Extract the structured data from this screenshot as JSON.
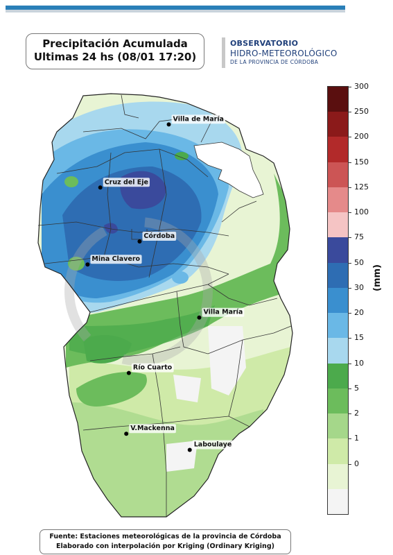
{
  "title": {
    "line1": "Precipitación Acumulada",
    "line2": "Ultimas 24 hs (08/01 17:20)"
  },
  "logo": {
    "line1": "OBSERVATORIO",
    "line2": "HIDRO-METEOROLÓGICO",
    "line3": "DE LA PROVINCIA DE CÓRDOBA"
  },
  "cities": [
    {
      "name": "Villa de María",
      "lon": -63.72,
      "lat": -29.9
    },
    {
      "name": "Cruz del Eje",
      "lon": -64.8,
      "lat": -30.72
    },
    {
      "name": "Córdoba",
      "lon": -64.18,
      "lat": -31.42
    },
    {
      "name": "Mina Clavero",
      "lon": -65.0,
      "lat": -31.72
    },
    {
      "name": "Villa María",
      "lon": -63.24,
      "lat": -32.41
    },
    {
      "name": "Río Cuarto",
      "lon": -64.35,
      "lat": -33.13
    },
    {
      "name": "V.Mackenna",
      "lon": -64.39,
      "lat": -33.92
    },
    {
      "name": "Laboulaye",
      "lon": -63.39,
      "lat": -34.13
    }
  ],
  "colorbar": {
    "unit": "(mm)",
    "levels": [
      "300",
      "250",
      "200",
      "150",
      "125",
      "100",
      "75",
      "50",
      "30",
      "20",
      "15",
      "10",
      "5",
      "2",
      "1",
      "0"
    ],
    "colors": [
      "#5a0f0f",
      "#8b1a1a",
      "#b22a2a",
      "#cc5555",
      "#e58a8a",
      "#f5c4c4",
      "#3a4a9c",
      "#2e6db3",
      "#3a8fcf",
      "#6ab8e6",
      "#a8d8ee",
      "#4caa4c",
      "#6cbc5c",
      "#a5d78a",
      "#cfeaa8",
      "#e8f4d4",
      "#f4f4f4"
    ]
  },
  "footer": {
    "line1": "Fuente: Estaciones meteorológicas de la provincia de Córdoba",
    "line2": "Elaborado con interpolación por Kriging (Ordinary Kriging)"
  }
}
